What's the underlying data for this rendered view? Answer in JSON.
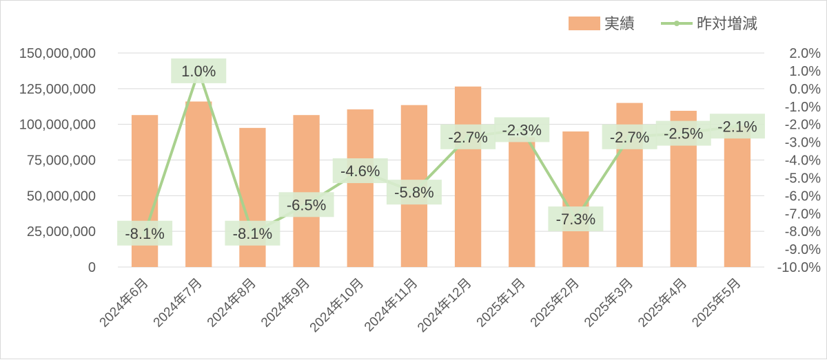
{
  "chart_data": {
    "type": "bar",
    "categories": [
      "2024年6月",
      "2024年7月",
      "2024年8月",
      "2024年9月",
      "2024年10月",
      "2024年11月",
      "2024年12月",
      "2025年1月",
      "2025年2月",
      "2025年3月",
      "2025年4月",
      "2025年5月"
    ],
    "series": [
      {
        "name": "実績",
        "type": "bar",
        "axis": "left",
        "color": "#f4b183",
        "values": [
          106500000,
          116000000,
          97500000,
          106500000,
          110500000,
          113500000,
          126500000,
          91000000,
          95000000,
          115000000,
          109500000,
          99000000
        ]
      },
      {
        "name": "昨対増減",
        "type": "line",
        "axis": "right",
        "color": "#a9d18e",
        "values": [
          -8.1,
          1.0,
          -8.1,
          -6.5,
          -4.6,
          -5.8,
          -2.7,
          -2.3,
          -7.3,
          -2.7,
          -2.5,
          -2.1
        ],
        "labels": [
          "-8.1%",
          "1.0%",
          "-8.1%",
          "-6.5%",
          "-4.6%",
          "-5.8%",
          "-2.7%",
          "-2.3%",
          "-7.3%",
          "-2.7%",
          "-2.5%",
          "-2.1%"
        ],
        "label_background": "#d9ecd0"
      }
    ],
    "left_axis": {
      "ylim": [
        0,
        150000000
      ],
      "ticks": [
        0,
        25000000,
        50000000,
        75000000,
        100000000,
        125000000,
        150000000
      ],
      "tick_labels": [
        "0",
        "25,000,000",
        "50,000,000",
        "75,000,000",
        "100,000,000",
        "125,000,000",
        "150,000,000"
      ]
    },
    "right_axis": {
      "ylim": [
        -10.0,
        2.0
      ],
      "ticks": [
        2.0,
        1.0,
        0.0,
        -1.0,
        -2.0,
        -3.0,
        -4.0,
        -5.0,
        -6.0,
        -7.0,
        -8.0,
        -9.0,
        -10.0
      ],
      "tick_labels": [
        "2.0%",
        "1.0%",
        "0.0%",
        "-1.0%",
        "-2.0%",
        "-3.0%",
        "-4.0%",
        "-5.0%",
        "-6.0%",
        "-7.0%",
        "-8.0%",
        "-9.0%",
        "-10.0%"
      ]
    },
    "grid": true,
    "legend": {
      "position": "top-right",
      "entries": [
        "実績",
        "昨対増減"
      ]
    },
    "gridline_color": "#d9d9d9",
    "text_color": "#595959"
  }
}
